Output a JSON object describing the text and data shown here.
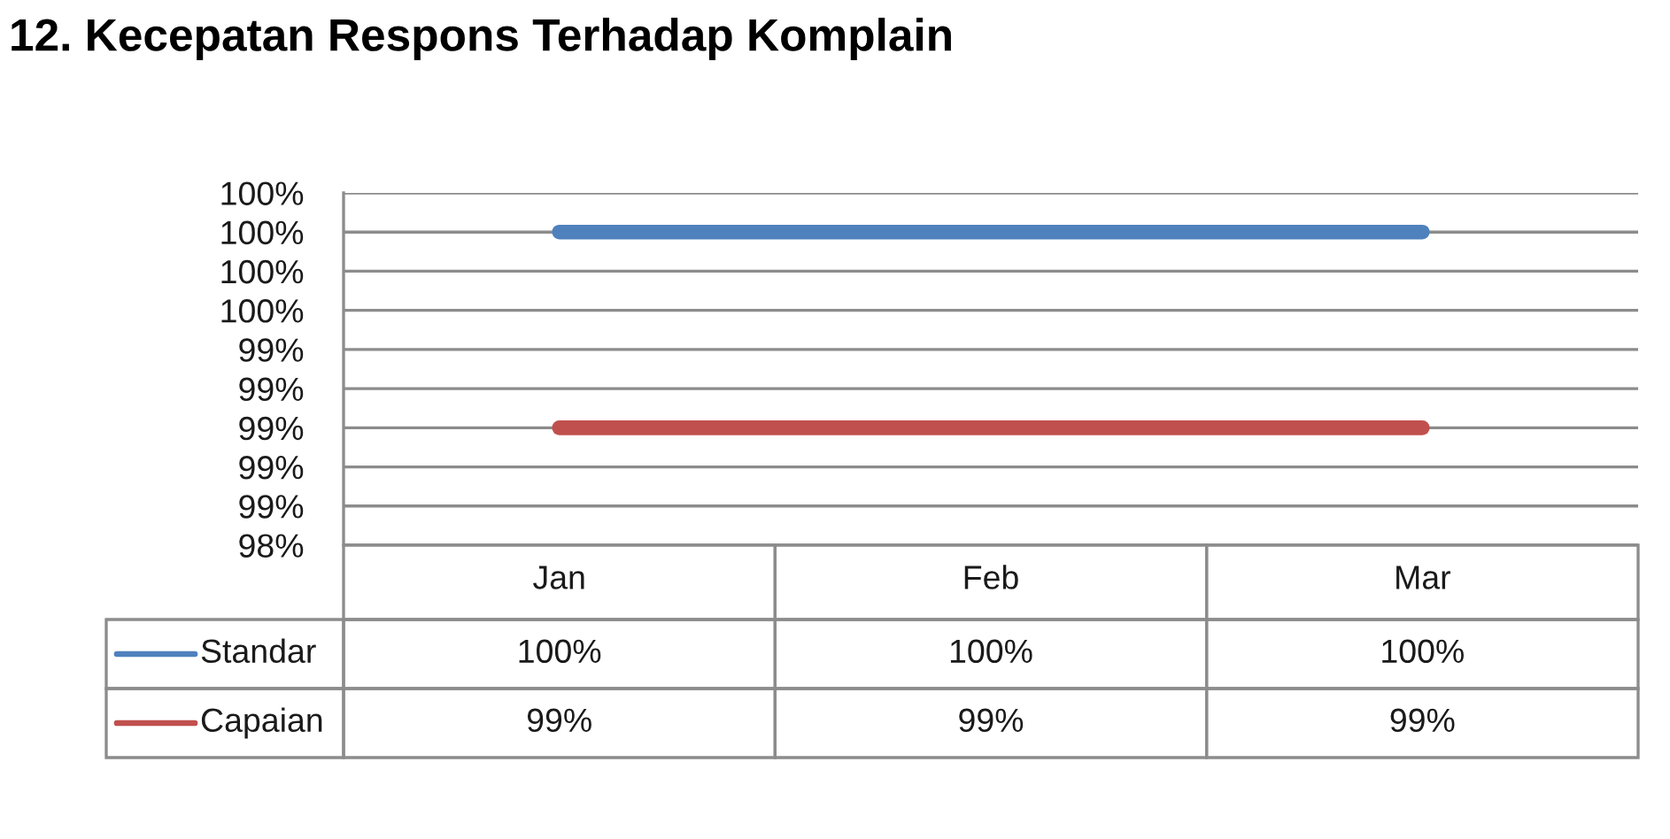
{
  "chart_data": {
    "type": "line",
    "title": "12. Kecepatan Respons Terhadap Komplain",
    "categories": [
      "Jan",
      "Feb",
      "Mar"
    ],
    "series": [
      {
        "name": "Standar",
        "color": "#4f81bd",
        "values": [
          100,
          100,
          100
        ],
        "value_labels": [
          "100%",
          "100%",
          "100%"
        ]
      },
      {
        "name": "Capaian",
        "color": "#c0504d",
        "values": [
          99,
          99,
          99
        ],
        "value_labels": [
          "99%",
          "99%",
          "99%"
        ]
      }
    ],
    "ylim": [
      98.4,
      100.2
    ],
    "yticks": [
      {
        "value": 98.4,
        "label": "98%"
      },
      {
        "value": 98.6,
        "label": "99%"
      },
      {
        "value": 98.8,
        "label": "99%"
      },
      {
        "value": 99.0,
        "label": "99%"
      },
      {
        "value": 99.2,
        "label": "99%"
      },
      {
        "value": 99.4,
        "label": "99%"
      },
      {
        "value": 99.6,
        "label": "100%"
      },
      {
        "value": 99.8,
        "label": "100%"
      },
      {
        "value": 100.0,
        "label": "100%"
      },
      {
        "value": 100.2,
        "label": "100%"
      }
    ],
    "grid": "y",
    "legend": "bottom left",
    "marker": "none",
    "line_style": "solid"
  }
}
